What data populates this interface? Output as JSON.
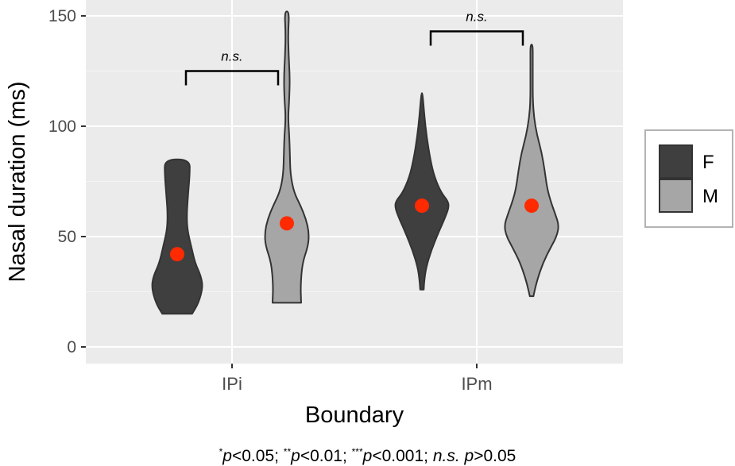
{
  "chart_data": {
    "type": "violin",
    "xlabel": "Boundary",
    "ylabel": "Nasal duration (ms)",
    "categories": [
      "IPi",
      "IPm"
    ],
    "ylim": [
      0,
      155
    ],
    "y_ticks": [
      0,
      50,
      100,
      150
    ],
    "grid": true,
    "legend": {
      "placement": "right",
      "entries": [
        {
          "name": "F",
          "color": "#3f3f3f"
        },
        {
          "name": "M",
          "color": "#a6a6a6"
        }
      ]
    },
    "series": [
      {
        "name": "F",
        "color": "#3f3f3f",
        "violins": [
          {
            "category": "IPi",
            "mean": 42,
            "profile": [
              [
                15,
                0.25
              ],
              [
                20,
                0.36
              ],
              [
                27,
                0.43
              ],
              [
                32,
                0.4
              ],
              [
                38,
                0.3
              ],
              [
                45,
                0.24
              ],
              [
                53,
                0.17
              ],
              [
                60,
                0.16
              ],
              [
                68,
                0.18
              ],
              [
                78,
                0.21
              ],
              [
                85,
                0.21
              ]
            ]
          },
          {
            "category": "IPm",
            "mean": 64,
            "profile": [
              [
                26,
                0.03
              ],
              [
                30,
                0.04
              ],
              [
                36,
                0.07
              ],
              [
                44,
                0.16
              ],
              [
                52,
                0.28
              ],
              [
                58,
                0.38
              ],
              [
                63,
                0.45
              ],
              [
                66,
                0.44
              ],
              [
                70,
                0.32
              ],
              [
                77,
                0.21
              ],
              [
                85,
                0.14
              ],
              [
                95,
                0.08
              ],
              [
                105,
                0.04
              ],
              [
                115,
                0.01
              ]
            ]
          }
        ]
      },
      {
        "name": "M",
        "color": "#a6a6a6",
        "violins": [
          {
            "category": "IPi",
            "mean": 56,
            "profile": [
              [
                20,
                0.24
              ],
              [
                28,
                0.23
              ],
              [
                38,
                0.26
              ],
              [
                46,
                0.36
              ],
              [
                52,
                0.37
              ],
              [
                58,
                0.32
              ],
              [
                64,
                0.23
              ],
              [
                70,
                0.12
              ],
              [
                78,
                0.06
              ],
              [
                88,
                0.05
              ],
              [
                96,
                0.04
              ],
              [
                104,
                0.02
              ],
              [
                112,
                0.04
              ],
              [
                122,
                0.05
              ],
              [
                132,
                0.03
              ],
              [
                142,
                0.02
              ],
              [
                152,
                0.04
              ]
            ]
          },
          {
            "category": "IPm",
            "mean": 64,
            "profile": [
              [
                23,
                0.03
              ],
              [
                30,
                0.09
              ],
              [
                38,
                0.19
              ],
              [
                45,
                0.32
              ],
              [
                50,
                0.42
              ],
              [
                55,
                0.46
              ],
              [
                60,
                0.4
              ],
              [
                66,
                0.32
              ],
              [
                72,
                0.26
              ],
              [
                80,
                0.22
              ],
              [
                88,
                0.17
              ],
              [
                96,
                0.09
              ],
              [
                104,
                0.04
              ],
              [
                112,
                0.02
              ],
              [
                122,
                0.02
              ],
              [
                130,
                0.02
              ],
              [
                137,
                0.02
              ]
            ]
          }
        ]
      }
    ],
    "mean_marker_color": "#ff2a00",
    "annotations": [
      {
        "category": "IPi",
        "text": "n.s.",
        "y": 125
      },
      {
        "category": "IPm",
        "text": "n.s.",
        "y": 143
      }
    ]
  },
  "footnote": {
    "s1": "*",
    "p1": "p",
    "t1": "<0.05; ",
    "s2": "**",
    "p2": "p",
    "t2": "<0.01; ",
    "s3": "***",
    "p3": "p",
    "t3": "<0.001; ",
    "ns": "n.s.",
    "sp": " ",
    "p4": "p",
    "t4": ">0.05"
  }
}
